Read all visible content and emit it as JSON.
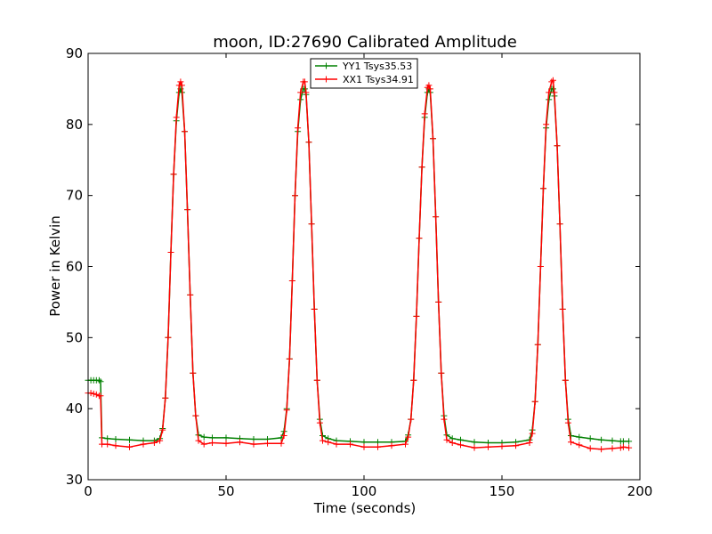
{
  "chart_data": {
    "type": "line",
    "title": "moon, ID:27690 Calibrated Amplitude",
    "xlabel": "Time (seconds)",
    "ylabel": "Power in Kelvin",
    "xlim": [
      0,
      200
    ],
    "ylim": [
      30,
      90
    ],
    "xticks": [
      "0",
      "50",
      "100",
      "150",
      "200"
    ],
    "yticks": [
      "30",
      "40",
      "50",
      "60",
      "70",
      "80",
      "90"
    ],
    "grid": false,
    "legend_position": "top-center",
    "series": [
      {
        "name": "YY1 Tsys35.53",
        "color": "#008000",
        "marker": "+",
        "x": [
          0,
          1,
          2,
          3,
          4,
          4.5,
          5,
          7,
          10,
          15,
          20,
          24,
          26,
          27,
          28,
          29,
          30,
          31,
          32,
          33,
          33.5,
          34,
          35,
          36,
          37,
          38,
          39,
          40,
          42,
          45,
          50,
          55,
          60,
          65,
          70,
          71,
          72,
          73,
          74,
          75,
          76,
          77,
          78,
          78.5,
          79,
          80,
          81,
          82,
          83,
          84,
          85,
          87,
          90,
          95,
          100,
          105,
          110,
          115,
          116,
          117,
          118,
          119,
          120,
          121,
          122,
          123,
          123.5,
          124,
          125,
          126,
          127,
          128,
          129,
          130,
          132,
          135,
          140,
          145,
          150,
          155,
          160,
          161,
          162,
          163,
          164,
          165,
          166,
          167,
          168,
          168.5,
          169,
          170,
          171,
          172,
          173,
          174,
          175,
          178,
          182,
          186,
          190,
          193,
          194,
          196
        ],
        "y": [
          44,
          44,
          44,
          44,
          44,
          43.8,
          35.9,
          35.8,
          35.7,
          35.6,
          35.5,
          35.5,
          35.8,
          37.2,
          41.5,
          50,
          62,
          73,
          80.5,
          84.5,
          85,
          84.5,
          79,
          68,
          56,
          45,
          39,
          36.3,
          36,
          35.9,
          35.9,
          35.8,
          35.7,
          35.7,
          35.9,
          36.8,
          40,
          47,
          58,
          70,
          79,
          83.5,
          85,
          85,
          84.2,
          77.5,
          66,
          54,
          44,
          38.5,
          36.2,
          35.8,
          35.5,
          35.4,
          35.3,
          35.3,
          35.3,
          35.4,
          36.3,
          38.5,
          44,
          53,
          64,
          74,
          81,
          84.5,
          85,
          84.5,
          78,
          67,
          55,
          45,
          39,
          36.3,
          35.8,
          35.6,
          35.3,
          35.2,
          35.2,
          35.3,
          35.6,
          37,
          41,
          49,
          60,
          71,
          79.5,
          83.5,
          85,
          85,
          84,
          77,
          66,
          54,
          44,
          38.5,
          36.2,
          36,
          35.8,
          35.6,
          35.5,
          35.4,
          35.4,
          35.4
        ]
      },
      {
        "name": "XX1 Tsys34.91",
        "color": "#ff0000",
        "marker": "+",
        "x": [
          0,
          1,
          2,
          3,
          4,
          4.5,
          5,
          7,
          10,
          15,
          20,
          24,
          26,
          27,
          28,
          29,
          30,
          31,
          32,
          33,
          33.5,
          34,
          35,
          36,
          37,
          38,
          39,
          40,
          42,
          45,
          50,
          55,
          60,
          65,
          70,
          71,
          72,
          73,
          74,
          75,
          76,
          77,
          78,
          78.5,
          79,
          80,
          81,
          82,
          83,
          84,
          85,
          87,
          90,
          95,
          100,
          105,
          110,
          115,
          116,
          117,
          118,
          119,
          120,
          121,
          122,
          123,
          123.5,
          124,
          125,
          126,
          127,
          128,
          129,
          130,
          132,
          135,
          140,
          145,
          150,
          155,
          160,
          161,
          162,
          163,
          164,
          165,
          166,
          167,
          168,
          168.5,
          169,
          170,
          171,
          172,
          173,
          174,
          175,
          178,
          182,
          186,
          190,
          193,
          194,
          196
        ],
        "y": [
          42.2,
          42.2,
          42.1,
          42,
          41.8,
          41.8,
          35,
          35,
          34.8,
          34.6,
          35,
          35.2,
          35.5,
          37,
          41.5,
          50,
          62,
          73,
          81,
          85.5,
          86,
          85.5,
          79,
          68,
          56,
          45,
          39,
          35.5,
          35,
          35.2,
          35.1,
          35.3,
          35,
          35.1,
          35.1,
          36.2,
          39.8,
          47,
          58,
          70,
          79.5,
          84.5,
          86,
          86,
          84.5,
          77.5,
          66,
          54,
          44,
          38,
          35.5,
          35.3,
          35,
          35,
          34.6,
          34.6,
          34.8,
          35,
          36,
          38.5,
          44,
          53,
          64,
          74,
          81.5,
          85.2,
          85.5,
          85,
          78,
          67,
          55,
          45,
          38.5,
          35.6,
          35.2,
          34.9,
          34.5,
          34.6,
          34.7,
          34.8,
          35.2,
          36.5,
          41,
          49,
          60,
          71,
          80,
          84.5,
          86,
          86.2,
          84.5,
          77,
          66,
          54,
          44,
          38,
          35.3,
          34.9,
          34.4,
          34.3,
          34.4,
          34.5,
          34.6,
          34.5
        ]
      }
    ]
  }
}
